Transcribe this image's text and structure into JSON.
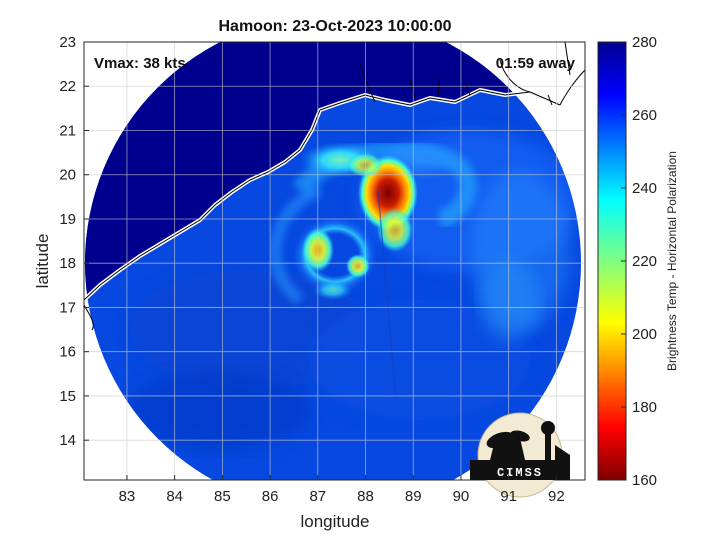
{
  "title": "Hamoon: 23-Oct-2023 10:00:00",
  "vmax_text": "Vmax: 38 kts",
  "time_text": "01:59 away",
  "axes": {
    "xlabel": "longitude",
    "ylabel": "latitude",
    "xlim": [
      82.1,
      92.6
    ],
    "ylim": [
      13.1,
      23.0
    ],
    "xticks": [
      "83",
      "84",
      "85",
      "86",
      "87",
      "88",
      "89",
      "90",
      "91",
      "92"
    ],
    "yticks": [
      "14",
      "15",
      "16",
      "17",
      "18",
      "19",
      "20",
      "21",
      "22",
      "23"
    ],
    "grid": true
  },
  "colorbar": {
    "label": "Brightness Temp - Horizontal Polarization",
    "ticks": [
      "160",
      "180",
      "200",
      "220",
      "240",
      "260",
      "280"
    ],
    "range": [
      160,
      280
    ],
    "colormap": "jet"
  },
  "logo": {
    "text": "CIMSS"
  },
  "colors": {
    "land_background": "#00008f",
    "warm_ocean": "#0048e6",
    "convection_core": "#8b0000",
    "coastline": "#ffffff"
  },
  "chart_data": {
    "type": "heatmap",
    "title": "Hamoon: 23-Oct-2023 10:00:00",
    "xlabel": "longitude",
    "ylabel": "latitude",
    "xlim": [
      82.1,
      92.6
    ],
    "ylim": [
      13.1,
      23.0
    ],
    "value_range": [
      160,
      280
    ],
    "colorbar_label": "Brightness Temp - Horizontal Polarization",
    "swath_center": [
      87.5,
      18.2
    ],
    "features": [
      {
        "name": "cold core",
        "lon": 88.3,
        "lat": 19.7,
        "tb": 165
      },
      {
        "name": "inner ring",
        "lon": 87.5,
        "lat": 18.2,
        "tb": 225
      },
      {
        "name": "rainband north",
        "lon": 87.6,
        "lat": 20.2,
        "tb": 230
      },
      {
        "name": "eye area",
        "lon": 87.3,
        "lat": 18.2,
        "tb": 265
      }
    ]
  }
}
